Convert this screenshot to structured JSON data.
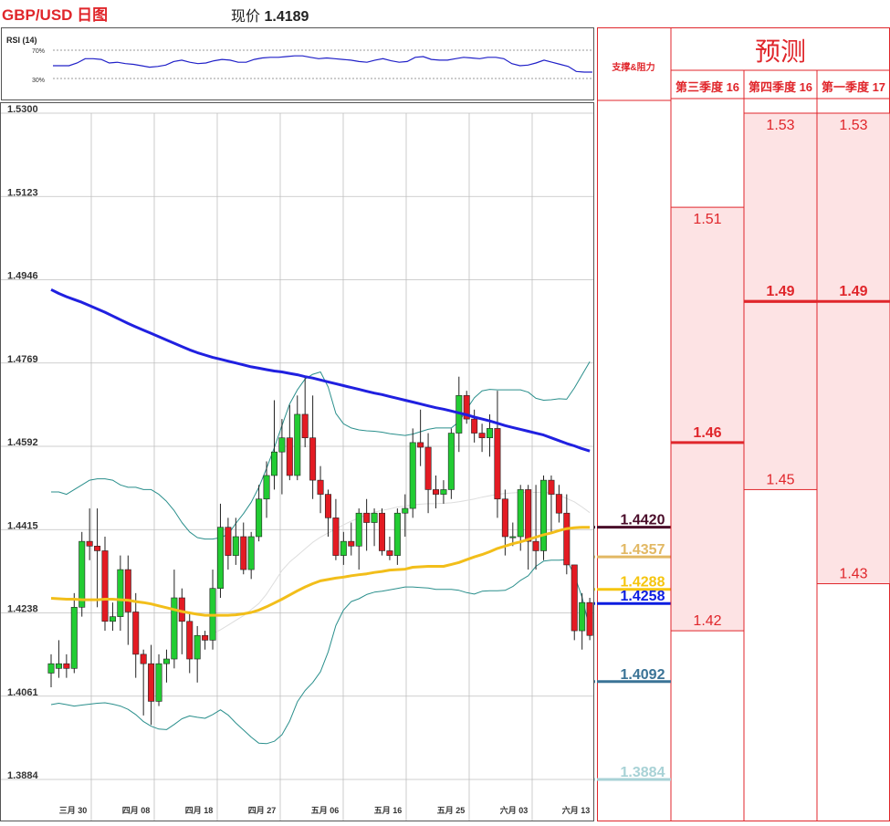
{
  "header": {
    "title": "GBP/USD 日图",
    "price_label": "现价",
    "price_value": "1.4189"
  },
  "rsi": {
    "label": "RSI (14)",
    "levels": [
      "70%",
      "30%"
    ],
    "values": [
      48,
      48,
      48,
      52,
      58,
      58,
      57,
      52,
      53,
      51,
      50,
      48,
      46,
      47,
      49,
      54,
      56,
      53,
      51,
      52,
      55,
      57,
      56,
      53,
      53,
      57,
      59,
      60,
      60,
      61,
      62,
      62,
      60,
      58,
      59,
      58,
      57,
      56,
      54,
      53,
      56,
      58,
      55,
      53,
      54,
      60,
      61,
      57,
      56,
      56,
      58,
      60,
      59,
      58,
      60,
      60,
      58,
      51,
      48,
      49,
      52,
      56,
      53,
      50,
      47,
      40,
      39,
      39
    ]
  },
  "chart_data": {
    "type": "candlestick",
    "title": "GBP/USD 日图",
    "ylim": [
      1.3884,
      1.53
    ],
    "y_ticks": [
      "1.5300",
      "1.5123",
      "1.4946",
      "1.4769",
      "1.4592",
      "1.4415",
      "1.4238",
      "1.4061",
      "1.3884"
    ],
    "x_ticks": [
      "三月 30",
      "四月 08",
      "四月 18",
      "四月 27",
      "五月 06",
      "五月 16",
      "五月 25",
      "六月 03",
      "六月 13"
    ],
    "candles": [
      [
        1.411,
        1.413,
        1.415,
        1.408
      ],
      [
        1.412,
        1.413,
        1.418,
        1.41
      ],
      [
        1.413,
        1.412,
        1.415,
        1.41
      ],
      [
        1.412,
        1.425,
        1.428,
        1.411
      ],
      [
        1.425,
        1.439,
        1.441,
        1.423
      ],
      [
        1.439,
        1.438,
        1.446,
        1.435
      ],
      [
        1.438,
        1.437,
        1.446,
        1.425
      ],
      [
        1.437,
        1.422,
        1.44,
        1.42
      ],
      [
        1.422,
        1.423,
        1.426,
        1.42
      ],
      [
        1.423,
        1.433,
        1.436,
        1.42
      ],
      [
        1.433,
        1.424,
        1.436,
        1.417
      ],
      [
        1.424,
        1.415,
        1.428,
        1.41
      ],
      [
        1.415,
        1.413,
        1.416,
        1.402
      ],
      [
        1.413,
        1.405,
        1.417,
        1.4
      ],
      [
        1.405,
        1.413,
        1.415,
        1.404
      ],
      [
        1.413,
        1.414,
        1.416,
        1.409
      ],
      [
        1.414,
        1.427,
        1.433,
        1.412
      ],
      [
        1.427,
        1.422,
        1.429,
        1.415
      ],
      [
        1.422,
        1.414,
        1.424,
        1.411
      ],
      [
        1.414,
        1.419,
        1.421,
        1.409
      ],
      [
        1.419,
        1.418,
        1.42,
        1.416
      ],
      [
        1.418,
        1.429,
        1.433,
        1.416
      ],
      [
        1.429,
        1.442,
        1.447,
        1.427
      ],
      [
        1.442,
        1.436,
        1.444,
        1.433
      ],
      [
        1.436,
        1.44,
        1.444,
        1.434
      ],
      [
        1.44,
        1.433,
        1.443,
        1.432
      ],
      [
        1.433,
        1.44,
        1.441,
        1.431
      ],
      [
        1.44,
        1.448,
        1.451,
        1.439
      ],
      [
        1.448,
        1.453,
        1.456,
        1.444
      ],
      [
        1.453,
        1.458,
        1.469,
        1.45
      ],
      [
        1.458,
        1.461,
        1.465,
        1.449
      ],
      [
        1.461,
        1.453,
        1.468,
        1.452
      ],
      [
        1.453,
        1.466,
        1.47,
        1.452
      ],
      [
        1.466,
        1.461,
        1.474,
        1.459
      ],
      [
        1.461,
        1.452,
        1.47,
        1.448
      ],
      [
        1.452,
        1.449,
        1.455,
        1.445
      ],
      [
        1.449,
        1.444,
        1.45,
        1.44
      ],
      [
        1.444,
        1.436,
        1.448,
        1.435
      ],
      [
        1.436,
        1.439,
        1.441,
        1.434
      ],
      [
        1.439,
        1.438,
        1.443,
        1.436
      ],
      [
        1.438,
        1.445,
        1.446,
        1.433
      ],
      [
        1.445,
        1.443,
        1.448,
        1.437
      ],
      [
        1.443,
        1.445,
        1.446,
        1.438
      ],
      [
        1.445,
        1.437,
        1.446,
        1.436
      ],
      [
        1.437,
        1.436,
        1.44,
        1.435
      ],
      [
        1.436,
        1.445,
        1.446,
        1.434
      ],
      [
        1.445,
        1.446,
        1.449,
        1.44
      ],
      [
        1.446,
        1.46,
        1.463,
        1.444
      ],
      [
        1.46,
        1.459,
        1.467,
        1.455
      ],
      [
        1.459,
        1.45,
        1.462,
        1.445
      ],
      [
        1.45,
        1.449,
        1.453,
        1.446
      ],
      [
        1.449,
        1.45,
        1.452,
        1.447
      ],
      [
        1.45,
        1.462,
        1.463,
        1.448
      ],
      [
        1.462,
        1.47,
        1.474,
        1.458
      ],
      [
        1.47,
        1.465,
        1.471,
        1.464
      ],
      [
        1.465,
        1.462,
        1.467,
        1.46
      ],
      [
        1.462,
        1.461,
        1.464,
        1.458
      ],
      [
        1.461,
        1.463,
        1.466,
        1.457
      ],
      [
        1.463,
        1.448,
        1.471,
        1.444
      ],
      [
        1.448,
        1.44,
        1.45,
        1.436
      ],
      [
        1.44,
        1.44,
        1.443,
        1.438
      ],
      [
        1.44,
        1.45,
        1.451,
        1.437
      ],
      [
        1.45,
        1.439,
        1.451,
        1.433
      ],
      [
        1.439,
        1.437,
        1.451,
        1.433
      ],
      [
        1.437,
        1.452,
        1.453,
        1.435
      ],
      [
        1.452,
        1.449,
        1.453,
        1.441
      ],
      [
        1.449,
        1.445,
        1.451,
        1.443
      ],
      [
        1.445,
        1.434,
        1.449,
        1.432
      ],
      [
        1.434,
        1.42,
        1.434,
        1.418
      ],
      [
        1.42,
        1.426,
        1.428,
        1.416
      ],
      [
        1.426,
        1.419,
        1.427,
        1.418
      ]
    ],
    "series": [
      {
        "name": "200MA",
        "color": "#2020e0",
        "values": [
          1.4925,
          1.4917,
          1.491,
          1.4904,
          1.4898,
          1.4891,
          1.4884,
          1.4877,
          1.4869,
          1.4861,
          1.4853,
          1.4846,
          1.4839,
          1.4832,
          1.4825,
          1.4818,
          1.4811,
          1.4804,
          1.4797,
          1.4791,
          1.4786,
          1.4781,
          1.4777,
          1.4773,
          1.4769,
          1.4765,
          1.4761,
          1.4758,
          1.4755,
          1.4752,
          1.475,
          1.4747,
          1.4744,
          1.474,
          1.4737,
          1.4733,
          1.4729,
          1.4725,
          1.4721,
          1.4717,
          1.4713,
          1.4709,
          1.4705,
          1.4702,
          1.4698,
          1.4694,
          1.469,
          1.4686,
          1.4682,
          1.4678,
          1.4674,
          1.4671,
          1.4667,
          1.4663,
          1.4659,
          1.4654,
          1.465,
          1.4646,
          1.4641,
          1.4636,
          1.4632,
          1.4628,
          1.4624,
          1.462,
          1.4616,
          1.461,
          1.4604,
          1.4598,
          1.4593,
          1.4587,
          1.4582
        ]
      },
      {
        "name": "50MA",
        "color": "#f2be1a",
        "values": [
          1.4269,
          1.4268,
          1.4267,
          1.4267,
          1.4266,
          1.4266,
          1.4266,
          1.4267,
          1.4267,
          1.4266,
          1.4265,
          1.4262,
          1.426,
          1.4257,
          1.4253,
          1.4249,
          1.4245,
          1.4241,
          1.4238,
          1.4235,
          1.4233,
          1.4233,
          1.4233,
          1.4233,
          1.4234,
          1.4236,
          1.4239,
          1.4244,
          1.4251,
          1.4259,
          1.4267,
          1.4276,
          1.4285,
          1.4293,
          1.43,
          1.4306,
          1.4309,
          1.4312,
          1.4314,
          1.4317,
          1.4319,
          1.4321,
          1.4324,
          1.4326,
          1.4329,
          1.433,
          1.4331,
          1.4335,
          1.4336,
          1.4337,
          1.4337,
          1.4337,
          1.4341,
          1.4345,
          1.4351,
          1.4357,
          1.4362,
          1.4368,
          1.4375,
          1.438,
          1.4385,
          1.4389,
          1.4394,
          1.4399,
          1.4404,
          1.4408,
          1.4413,
          1.4417,
          1.4419,
          1.442,
          1.442
        ]
      },
      {
        "name": "20MA",
        "color": "#dddddd",
        "values": [
          null,
          null,
          null,
          null,
          null,
          null,
          null,
          null,
          null,
          null,
          null,
          null,
          null,
          null,
          null,
          null,
          null,
          null,
          null,
          null,
          null,
          1.4194,
          1.4202,
          1.4212,
          1.4222,
          1.4232,
          1.4245,
          1.4258,
          1.4278,
          1.4303,
          1.4328,
          1.4346,
          1.436,
          1.4374,
          1.4388,
          1.4399,
          1.4408,
          1.4416,
          1.4425,
          1.4433,
          1.444,
          1.4446,
          1.4452,
          1.4456,
          1.4459,
          1.4463,
          1.4465,
          1.4467,
          1.4469,
          1.447,
          1.447,
          1.4471,
          1.4472,
          1.4474,
          1.4477,
          1.448,
          1.4484,
          1.4487,
          1.449,
          1.4492,
          1.4493,
          1.4494,
          1.4494,
          1.4494,
          1.4494,
          1.4493,
          1.4488,
          1.4481,
          1.4474,
          1.4463,
          1.4451
        ]
      },
      {
        "name": "BB upper",
        "color": "#2a8f8c",
        "values": [
          1.4495,
          1.4495,
          1.449,
          1.45,
          1.451,
          1.452,
          1.4523,
          1.4523,
          1.452,
          1.451,
          1.4505,
          1.4505,
          1.45,
          1.45,
          1.449,
          1.4475,
          1.4455,
          1.443,
          1.441,
          1.4398,
          1.4395,
          1.4395,
          1.4398,
          1.4405,
          1.4428,
          1.4449,
          1.4473,
          1.4505,
          1.4545,
          1.4589,
          1.4636,
          1.4682,
          1.4712,
          1.4735,
          1.4745,
          1.475,
          1.4718,
          1.4662,
          1.464,
          1.4631,
          1.4627,
          1.4625,
          1.4624,
          1.4622,
          1.4619,
          1.4617,
          1.4615,
          1.4618,
          1.4623,
          1.4628,
          1.4631,
          1.4631,
          1.4631,
          1.4644,
          1.4671,
          1.4695,
          1.471,
          1.4713,
          1.4712,
          1.4712,
          1.4712,
          1.4712,
          1.4707,
          1.4694,
          1.469,
          1.4691,
          1.4693,
          1.4692,
          1.4716,
          1.4744,
          1.4772
        ]
      },
      {
        "name": "BB lower",
        "color": "#2a8f8c",
        "values": [
          1.4043,
          1.4046,
          1.4043,
          1.404,
          1.4042,
          1.4044,
          1.4046,
          1.4047,
          1.4044,
          1.404,
          1.4033,
          1.4022,
          1.4007,
          1.3997,
          1.3991,
          1.399,
          1.4001,
          1.4013,
          1.4019,
          1.4016,
          1.4014,
          1.4022,
          1.4032,
          1.4021,
          1.4004,
          1.3989,
          1.3974,
          1.3961,
          1.396,
          1.3965,
          1.3979,
          1.4008,
          1.4049,
          1.4073,
          1.409,
          1.4113,
          1.4155,
          1.4211,
          1.4244,
          1.4262,
          1.4268,
          1.4277,
          1.4282,
          1.4284,
          1.4287,
          1.429,
          1.4293,
          1.4293,
          1.4292,
          1.4291,
          1.4288,
          1.4288,
          1.4288,
          1.4286,
          1.4281,
          1.4278,
          1.4284,
          1.4285,
          1.4285,
          1.4286,
          1.4294,
          1.4307,
          1.4317,
          1.4337,
          1.4348,
          1.435,
          1.435,
          1.4351,
          1.4318,
          1.4271,
          1.4203
        ]
      }
    ],
    "levels": [
      {
        "value": "1.4420",
        "color": "#4a0d2a"
      },
      {
        "value": "1.4357",
        "color": "#e2b863"
      },
      {
        "value": "1.4288",
        "color": "#f5c50f"
      },
      {
        "value": "1.4258",
        "color": "#0c1de0"
      },
      {
        "value": "1.4092",
        "color": "#3a7396"
      },
      {
        "value": "1.3884",
        "color": "#a8d2d6"
      }
    ]
  },
  "forecast": {
    "sr_header": "支撑&阻力",
    "title": "预测",
    "columns": [
      {
        "label": "第三季度 16",
        "high": 1.51,
        "low": 1.42,
        "mid": 1.46,
        "high_text": "1.51",
        "low_text": "1.42",
        "mid_text": "1.46"
      },
      {
        "label": "第四季度 16",
        "high": 1.53,
        "low": 1.45,
        "mid": 1.49,
        "high_text": "1.53",
        "low_text": "1.45",
        "mid_text": "1.49"
      },
      {
        "label": "第一季度 17",
        "high": 1.53,
        "low": 1.43,
        "mid": 1.49,
        "high_text": "1.53",
        "low_text": "1.43",
        "mid_text": "1.49"
      }
    ]
  }
}
